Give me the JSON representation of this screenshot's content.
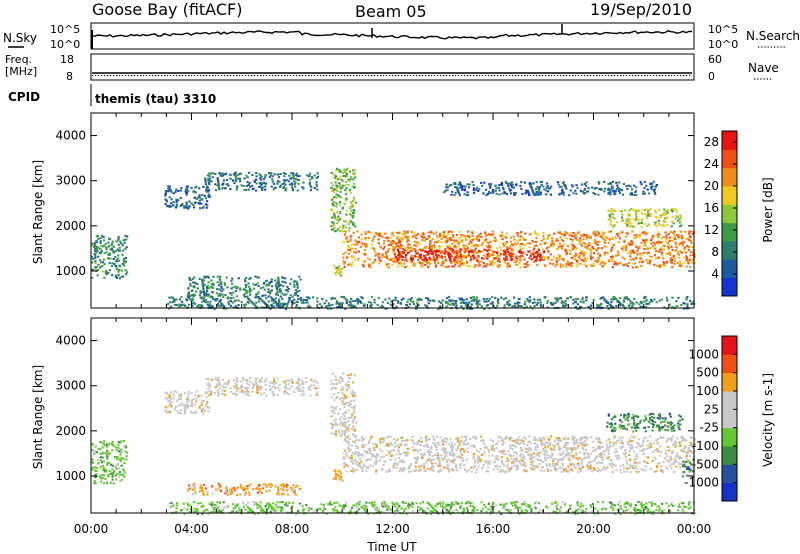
{
  "header": {
    "station": "Goose Bay (fitACF)",
    "beam": "Beam 05",
    "date": "19/Sep/2010"
  },
  "noise_panel": {
    "left_label": "N.Sky",
    "right_label": "N.Search",
    "left_ticks": [
      "10^5",
      "10^0"
    ],
    "right_ticks": [
      "10^5",
      "10^0"
    ]
  },
  "freq_panel": {
    "left_label_line1": "Freq.",
    "left_label_line2": "[MHz]",
    "right_label": "Nave",
    "left_ticks": [
      "18",
      "8"
    ],
    "right_ticks": [
      "60",
      "0"
    ]
  },
  "cpid": {
    "label": "CPID",
    "value": "themis (tau) 3310"
  },
  "colors": {
    "power_scale": [
      "#1432d2",
      "#1e5aa0",
      "#2e7d6e",
      "#3c9b46",
      "#8cc83c",
      "#f0c81e",
      "#f08c1e",
      "#f05014",
      "#e61414"
    ],
    "velocity_scale": [
      "#e61414",
      "#f05014",
      "#f0a01e",
      "#c8c8c8",
      "#c8c8c8",
      "#64c832",
      "#3c8c46",
      "#2850a0",
      "#1432c8"
    ],
    "ground_scatter": "#a0a0a0"
  },
  "chart_data": [
    {
      "type": "heatmap",
      "name": "power",
      "ylabel": "Slant Range [km]",
      "xlim": [
        0,
        24
      ],
      "ylim": [
        180,
        4500
      ],
      "yticks": [
        "1000",
        "2000",
        "3000",
        "4000"
      ],
      "ytick_values": [
        1000,
        2000,
        3000,
        4000
      ],
      "colorbar": {
        "label": "Power [dB]",
        "ticks": [
          "4",
          "8",
          "12",
          "16",
          "20",
          "24",
          "28"
        ],
        "range": [
          0,
          30
        ]
      },
      "regions": [
        {
          "t": [
            0.0,
            1.4
          ],
          "r": [
            850,
            1800
          ],
          "val": 10
        },
        {
          "t": [
            2.9,
            4.7
          ],
          "r": [
            2400,
            2900
          ],
          "val": 6
        },
        {
          "t": [
            4.5,
            9.0
          ],
          "r": [
            2800,
            3200
          ],
          "val": 7
        },
        {
          "t": [
            3.8,
            8.3
          ],
          "r": [
            450,
            900
          ],
          "val": 9
        },
        {
          "t": [
            3.0,
            24.0
          ],
          "r": [
            180,
            450
          ],
          "val": 8
        },
        {
          "t": [
            9.5,
            10.5
          ],
          "r": [
            1900,
            3300
          ],
          "val": 14
        },
        {
          "t": [
            9.6,
            10.0
          ],
          "r": [
            900,
            1150
          ],
          "val": 17
        },
        {
          "t": [
            10.0,
            24.0
          ],
          "r": [
            1100,
            1900
          ],
          "val": 22
        },
        {
          "t": [
            12.0,
            18.0
          ],
          "r": [
            1250,
            1500
          ],
          "val": 28
        },
        {
          "t": [
            20.5,
            23.5
          ],
          "r": [
            2000,
            2400
          ],
          "val": 16
        },
        {
          "t": [
            14.0,
            22.5
          ],
          "r": [
            2700,
            3000
          ],
          "val": 6
        }
      ]
    },
    {
      "type": "heatmap",
      "name": "velocity",
      "xlabel": "Time UT",
      "ylabel": "Slant Range [km]",
      "xlim": [
        0,
        24
      ],
      "ylim": [
        180,
        4500
      ],
      "xticks": [
        "00:00",
        "04:00",
        "08:00",
        "12:00",
        "16:00",
        "20:00",
        "00:00"
      ],
      "xtick_values": [
        0,
        4,
        8,
        12,
        16,
        20,
        24
      ],
      "yticks": [
        "1000",
        "2000",
        "3000",
        "4000"
      ],
      "ytick_values": [
        1000,
        2000,
        3000,
        4000
      ],
      "colorbar": {
        "label": "Velocity [m s-1]",
        "ticks": [
          "1000",
          "500",
          "100",
          "25",
          "-25",
          "-100",
          "-500",
          "-1000"
        ]
      },
      "regions": [
        {
          "t": [
            0.0,
            1.4
          ],
          "r": [
            850,
            1800
          ],
          "cls": 5
        },
        {
          "t": [
            2.9,
            4.7
          ],
          "r": [
            2400,
            2900
          ],
          "cls": 3
        },
        {
          "t": [
            4.5,
            9.0
          ],
          "r": [
            2800,
            3200
          ],
          "cls": 3
        },
        {
          "t": [
            3.8,
            8.3
          ],
          "r": [
            600,
            850
          ],
          "cls": 2
        },
        {
          "t": [
            3.0,
            24.0
          ],
          "r": [
            180,
            450
          ],
          "cls": 5
        },
        {
          "t": [
            9.5,
            10.5
          ],
          "r": [
            1900,
            3300
          ],
          "cls": 3
        },
        {
          "t": [
            9.6,
            10.0
          ],
          "r": [
            900,
            1150
          ],
          "cls": 2
        },
        {
          "t": [
            10.0,
            24.0
          ],
          "r": [
            1100,
            1900
          ],
          "cls": 3
        },
        {
          "t": [
            20.5,
            23.5
          ],
          "r": [
            2000,
            2400
          ],
          "cls": 6
        },
        {
          "t": [
            23.5,
            24.0
          ],
          "r": [
            1000,
            1400
          ],
          "cls": 6
        }
      ]
    }
  ]
}
